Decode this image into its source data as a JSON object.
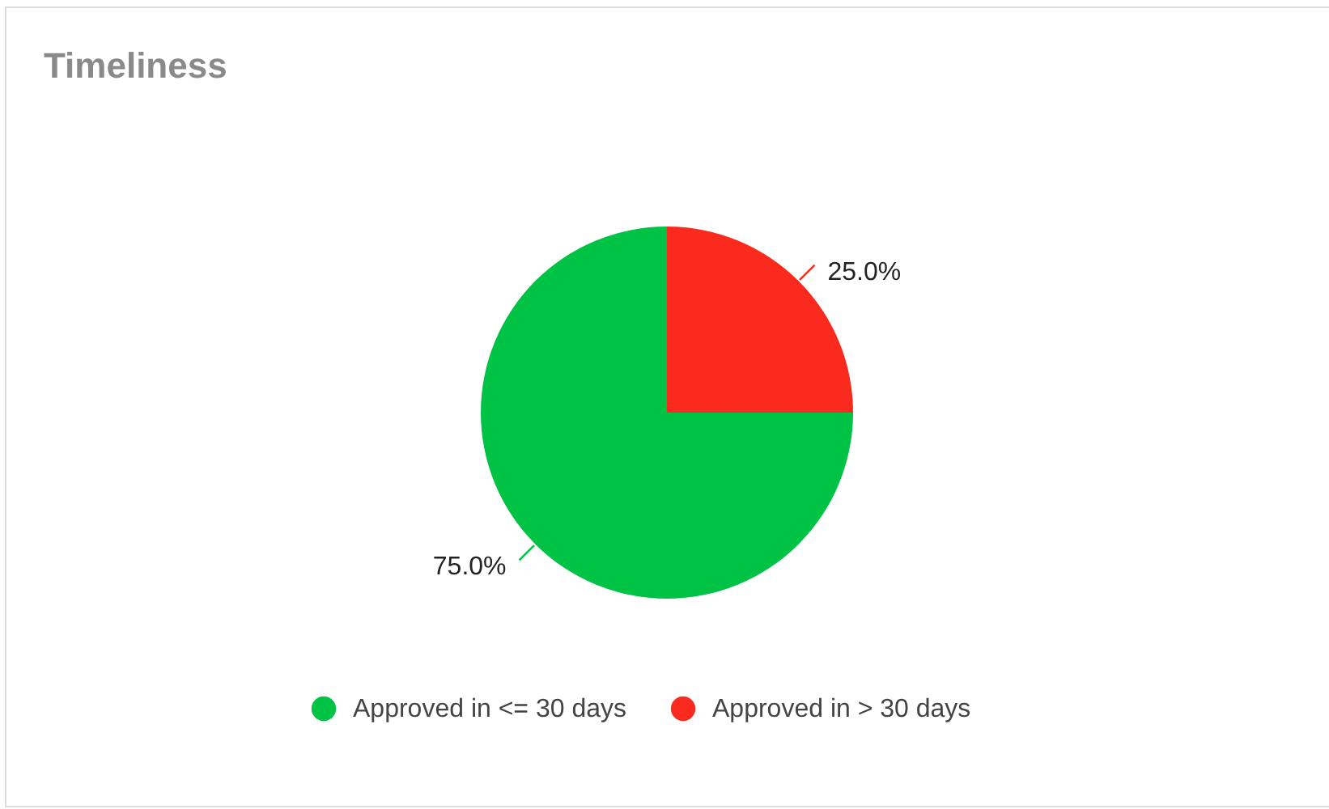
{
  "chart_data": {
    "type": "pie",
    "title": "Timeliness",
    "categories": [
      "Approved in <= 30 days",
      "Approved in > 30 days"
    ],
    "values": [
      75,
      25
    ],
    "colors": [
      "#00c244",
      "#fb2a1e"
    ],
    "value_labels": [
      "75.0%",
      "25.0%"
    ],
    "legend": "bottom"
  }
}
